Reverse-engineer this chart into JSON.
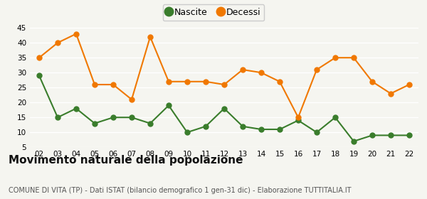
{
  "years": [
    "02",
    "03",
    "04",
    "05",
    "06",
    "07",
    "08",
    "09",
    "10",
    "11",
    "12",
    "13",
    "14",
    "15",
    "16",
    "17",
    "18",
    "19",
    "20",
    "21",
    "22"
  ],
  "nascite": [
    29,
    15,
    18,
    13,
    15,
    15,
    13,
    19,
    10,
    12,
    18,
    12,
    11,
    11,
    14,
    10,
    15,
    7,
    9,
    9,
    9
  ],
  "decessi": [
    35,
    40,
    43,
    26,
    26,
    21,
    42,
    27,
    27,
    27,
    26,
    31,
    30,
    27,
    15,
    31,
    35,
    35,
    27,
    23,
    26
  ],
  "nascite_color": "#3a7d2c",
  "decessi_color": "#f07800",
  "background_color": "#f5f5f0",
  "grid_color": "#ffffff",
  "ylim": [
    5,
    45
  ],
  "yticks": [
    5,
    10,
    15,
    20,
    25,
    30,
    35,
    40,
    45
  ],
  "title": "Movimento naturale della popolazione",
  "subtitle": "COMUNE DI VITA (TP) - Dati ISTAT (bilancio demografico 1 gen-31 dic) - Elaborazione TUTTITALIA.IT",
  "legend_nascite": "Nascite",
  "legend_decessi": "Decessi",
  "title_fontsize": 11,
  "subtitle_fontsize": 7,
  "legend_fontsize": 9,
  "marker_size": 5,
  "linewidth": 1.5
}
